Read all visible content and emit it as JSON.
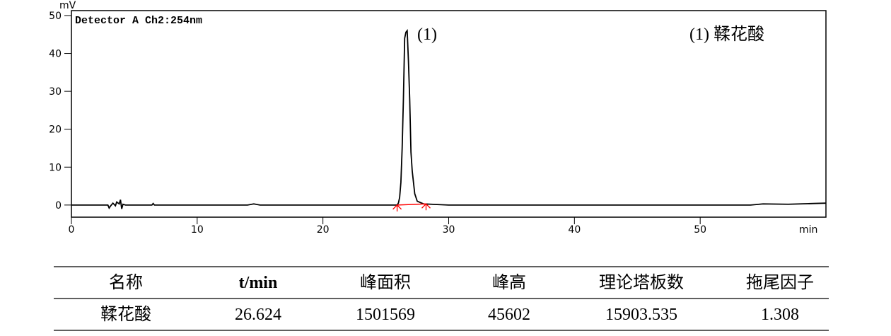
{
  "chart_data": {
    "type": "line",
    "title": "Detector A Ch2:254nm",
    "y_label": "mV",
    "x_label": "min",
    "x": [
      0,
      2.9,
      3.0,
      3.1,
      3.3,
      3.5,
      3.6,
      3.8,
      3.9,
      4.0,
      4.1,
      4.3,
      6.4,
      6.5,
      6.6,
      14,
      14.5,
      15,
      25.9,
      26.0,
      26.1,
      26.2,
      26.3,
      26.4,
      26.5,
      26.6,
      26.7,
      26.8,
      26.9,
      27.0,
      27.1,
      27.3,
      27.5,
      28.0,
      30,
      54,
      55,
      57,
      59,
      60
    ],
    "values": [
      0,
      0,
      -0.8,
      -0.3,
      0.5,
      -0.2,
      0.8,
      0.3,
      1.4,
      -1.0,
      0.2,
      0,
      0,
      0.4,
      0,
      0,
      0.3,
      0,
      0,
      0.5,
      2,
      6,
      15,
      28,
      44,
      45.6,
      46,
      38,
      28,
      14,
      9,
      3,
      1,
      0.3,
      0,
      0,
      0.3,
      0.2,
      0.4,
      0.5
    ],
    "color": "#000000",
    "integration_baseline": {
      "x": [
        25.9,
        28.2
      ],
      "values": [
        0,
        0.3
      ],
      "color": "#ff0000"
    },
    "xlim": [
      0,
      60
    ],
    "ylim": [
      -3.2,
      51.3
    ],
    "xticks": [
      0,
      10,
      20,
      30,
      40,
      50
    ],
    "yticks": [
      0,
      10,
      20,
      30,
      40,
      50
    ],
    "annotations": [
      "(1)",
      "(1)  鞣花酸"
    ]
  },
  "table": {
    "header": [
      "名称",
      "t/min",
      "峰面积",
      "峰高",
      "理论塔板数",
      "拖尾因子"
    ],
    "rows": [
      [
        "鞣花酸",
        "26.624",
        "1501569",
        "45602",
        "15903.535",
        "1.308"
      ]
    ]
  }
}
